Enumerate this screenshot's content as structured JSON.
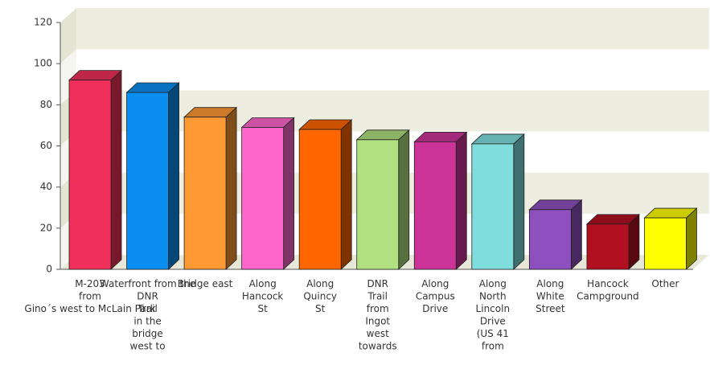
{
  "chart_data": {
    "type": "bar3d",
    "categories": [
      "M-203\nfrom\nGino´s west to McLain Park",
      "Waterfront from the\nDNR\nTrail\nin the\nbridge\nwest to",
      "Bridge east",
      "Along\nHancock\nSt",
      "Along\nQuincy\nSt",
      "DNR\nTrail\nfrom\nIngot\nwest\ntowards",
      "Along\nCampus\nDrive",
      "Along\nNorth\nLincoln\nDrive\n(US 41\nfrom",
      "Along\nWhite\nStreet",
      "Hancock\nCampground",
      "Other"
    ],
    "values": [
      92,
      86,
      74,
      69,
      68,
      63,
      62,
      61,
      29,
      22,
      25
    ],
    "colors": [
      "#f0305a",
      "#0a8ff0",
      "#ff9933",
      "#ff66cc",
      "#ff6600",
      "#b0e080",
      "#cc3399",
      "#80dddd",
      "#8e4fbf",
      "#b01020",
      "#ffff00"
    ],
    "ylim": [
      0,
      120
    ],
    "yticks": [
      0,
      20,
      40,
      60,
      80,
      100,
      120
    ],
    "grid": true
  }
}
